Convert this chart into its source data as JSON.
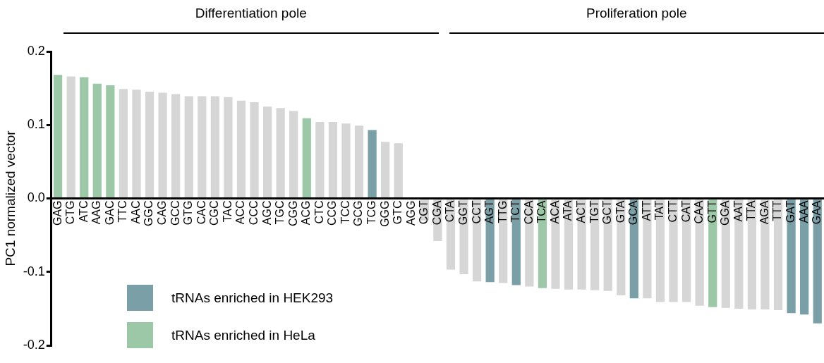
{
  "chart_data": {
    "type": "bar",
    "ylabel": "PC1 normalized vector",
    "annotations": [
      "Differentiation pole",
      "Proliferation pole"
    ],
    "categories": [
      "GAG",
      "CTG",
      "ATC",
      "AAG",
      "GAC",
      "TTC",
      "AAC",
      "GGC",
      "CAG",
      "GCC",
      "GTG",
      "CAC",
      "CGC",
      "TAC",
      "ACC",
      "CCC",
      "AGC",
      "TGC",
      "CGG",
      "ACG",
      "CTC",
      "CCG",
      "TCC",
      "GCG",
      "TCG",
      "GGG",
      "GTC",
      "AGG",
      "CGT",
      "CGA",
      "CTA",
      "GGT",
      "CCT",
      "AGT",
      "TTG",
      "TCT",
      "CCA",
      "TCA",
      "ACA",
      "ATA",
      "ACT",
      "TGT",
      "GCT",
      "GTA",
      "GCA",
      "ATT",
      "TAT",
      "CTT",
      "CAT",
      "CAA",
      "GTT",
      "GGA",
      "AAT",
      "TTA",
      "AGA",
      "TTT",
      "GAT",
      "AAA",
      "GAA"
    ],
    "series": [
      {
        "name": "tRNAs enriched in HEK293",
        "color": "#7a9fa7",
        "values": [
          null,
          null,
          null,
          null,
          null,
          null,
          null,
          null,
          null,
          null,
          null,
          null,
          null,
          null,
          null,
          null,
          null,
          null,
          null,
          null,
          null,
          null,
          null,
          null,
          0.093,
          null,
          null,
          null,
          null,
          null,
          null,
          null,
          null,
          -0.114,
          null,
          -0.118,
          null,
          null,
          null,
          null,
          null,
          null,
          null,
          null,
          -0.136,
          null,
          null,
          null,
          null,
          null,
          null,
          null,
          null,
          null,
          null,
          null,
          -0.156,
          -0.158,
          -0.17
        ]
      },
      {
        "name": "tRNAs enriched in HeLa",
        "color": "#9cc8a8",
        "values": [
          0.168,
          null,
          0.165,
          0.156,
          0.154,
          null,
          null,
          null,
          null,
          null,
          null,
          null,
          null,
          null,
          null,
          null,
          null,
          null,
          null,
          0.109,
          null,
          null,
          null,
          null,
          null,
          null,
          null,
          null,
          null,
          null,
          null,
          null,
          null,
          null,
          null,
          null,
          null,
          -0.122,
          null,
          null,
          null,
          null,
          null,
          null,
          null,
          null,
          null,
          null,
          null,
          null,
          -0.148,
          null,
          null,
          null,
          null,
          null,
          null,
          null,
          null
        ]
      },
      {
        "color": "#d6d6d6",
        "values": [
          null,
          0.166,
          null,
          null,
          null,
          0.149,
          0.148,
          0.145,
          0.144,
          0.142,
          0.139,
          0.139,
          0.139,
          0.138,
          0.133,
          0.131,
          0.125,
          0.123,
          0.119,
          null,
          0.104,
          0.104,
          0.102,
          0.099,
          null,
          0.077,
          0.075,
          null,
          -0.03,
          -0.058,
          -0.097,
          -0.103,
          -0.113,
          null,
          -0.115,
          null,
          -0.12,
          null,
          -0.123,
          -0.124,
          -0.124,
          -0.125,
          -0.126,
          -0.132,
          null,
          -0.136,
          -0.141,
          -0.141,
          -0.141,
          -0.146,
          null,
          -0.149,
          -0.15,
          -0.151,
          -0.151,
          -0.152,
          null,
          null,
          null
        ]
      }
    ],
    "ylim": [
      -0.2,
      0.2
    ],
    "yticks": [
      -0.2,
      -0.1,
      {
        "value": 0,
        "label": "0.0"
      },
      0.1,
      0.2
    ],
    "legend": "bottom left",
    "grid": false
  }
}
